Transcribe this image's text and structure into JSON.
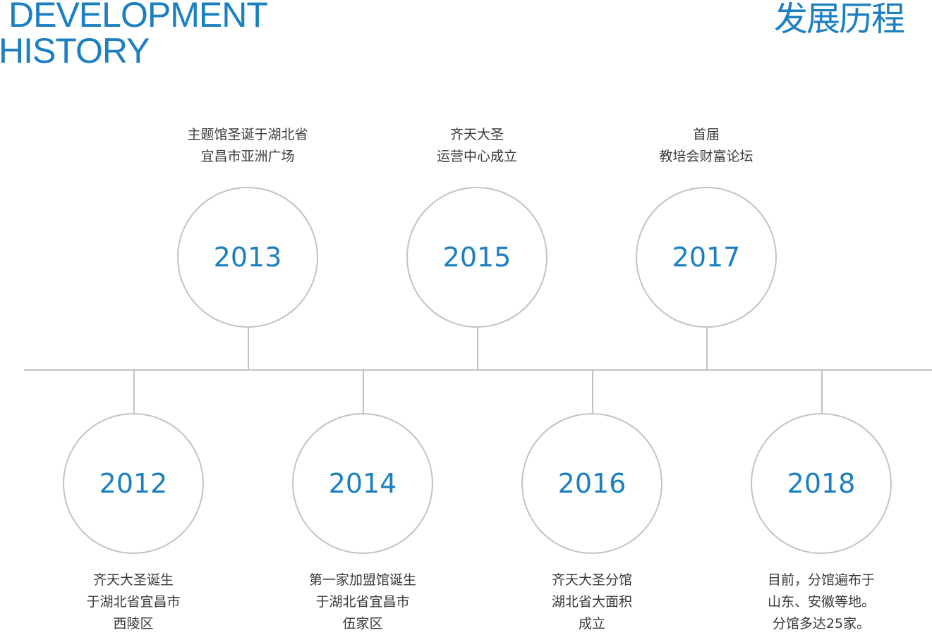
{
  "header": {
    "title_en_line1": "DEVELOPMENT",
    "title_en_line2": "HISTORY",
    "title_cn": "发展历程"
  },
  "colors": {
    "accent": "#1b7fc1",
    "line": "#c3c3c3",
    "text": "#3a3a3a"
  },
  "milestones": [
    {
      "year": "2012",
      "lines": [
        "齐天大圣诞生",
        "于湖北省宜昌市",
        "西陵区"
      ]
    },
    {
      "year": "2013",
      "lines": [
        "主题馆圣诞于湖北省",
        "宜昌市亚洲广场"
      ]
    },
    {
      "year": "2014",
      "lines": [
        "第一家加盟馆诞生",
        "于湖北省宜昌市",
        "伍家区"
      ]
    },
    {
      "year": "2015",
      "lines": [
        "齐天大圣",
        "运营中心成立"
      ]
    },
    {
      "year": "2016",
      "lines": [
        "齐天大圣分馆",
        "湖北省大面积",
        "成立"
      ]
    },
    {
      "year": "2017",
      "lines": [
        "首届",
        "教培会财富论坛"
      ]
    },
    {
      "year": "2018",
      "lines": [
        "目前，分馆遍布于",
        "山东、安徽等地。",
        "分馆多达25家。"
      ]
    }
  ]
}
